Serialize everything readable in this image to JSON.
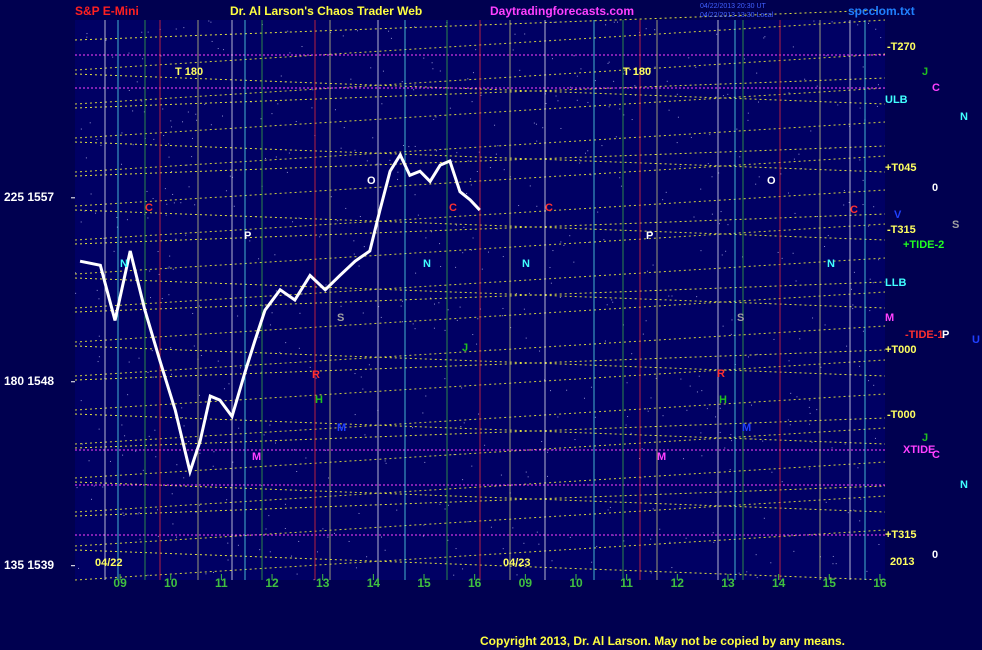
{
  "chart_data": {
    "type": "line",
    "symbol": "S&P E-Mini",
    "title": "Dr. Al Larson's Chaos Trader Web",
    "website": "Daytradingforecasts.com",
    "timestamps": [
      "04/22/2013 20:30 UT",
      "04/22/2013 13:30 Local"
    ],
    "file": "spcclom.txt",
    "copyright": "Copyright 2013, Dr. Al Larson. May not be copied by any means.",
    "color": "#ffffff",
    "x": [
      -0.79,
      -0.39,
      -0.1,
      0.2,
      0.49,
      0.79,
      1.09,
      1.38,
      1.58,
      1.78,
      1.97,
      2.21,
      2.47,
      2.66,
      2.86,
      3.16,
      3.45,
      3.75,
      4.05,
      4.34,
      4.64,
      4.93,
      5.13,
      5.33,
      5.53,
      5.72,
      5.92,
      6.12,
      6.32,
      6.51,
      6.71,
      6.91,
      7.1
    ],
    "values": [
      1553.9,
      1553.7,
      1551.0,
      1554.4,
      1551.5,
      1549.0,
      1546.6,
      1543.6,
      1545.1,
      1547.3,
      1547.1,
      1546.3,
      1548.5,
      1550.0,
      1551.5,
      1552.5,
      1552.0,
      1553.2,
      1552.5,
      1553.2,
      1553.9,
      1554.4,
      1556.4,
      1558.3,
      1559.1,
      1558.1,
      1558.3,
      1557.8,
      1558.6,
      1558.8,
      1557.3,
      1556.9,
      1556.4
    ],
    "xlim": [
      -0.89,
      15.1
    ],
    "xticks": [
      {
        "value": 0,
        "label": "09"
      },
      {
        "value": 1,
        "label": "10"
      },
      {
        "value": 2,
        "label": "11"
      },
      {
        "value": 3,
        "label": "12"
      },
      {
        "value": 4,
        "label": "13"
      },
      {
        "value": 5,
        "label": "14"
      },
      {
        "value": 6,
        "label": "15"
      },
      {
        "value": 7,
        "label": "16"
      },
      {
        "value": 8,
        "label": "09"
      },
      {
        "value": 9,
        "label": "10"
      },
      {
        "value": 10,
        "label": "11"
      },
      {
        "value": 11,
        "label": "12"
      },
      {
        "value": 12,
        "label": "13"
      },
      {
        "value": 13,
        "label": "14"
      },
      {
        "value": 14,
        "label": "15"
      },
      {
        "value": 15,
        "label": "16"
      }
    ],
    "ylim": [
      1538.3,
      1565.7
    ],
    "yticks": [
      {
        "value": 1539,
        "label": "135 1539"
      },
      {
        "value": 1548,
        "label": "180 1548"
      },
      {
        "value": 1557,
        "label": "225 1557"
      }
    ],
    "labels": [
      "-T270",
      "ULB",
      "+T045",
      "-T315",
      "+TIDE-2",
      "LLB",
      "M",
      "-TIDE-1",
      "+T000",
      "-T000",
      "XTIDE",
      "+T315",
      "2013",
      "J",
      "C",
      "N",
      "0",
      "S",
      "P",
      "U",
      "J",
      "C",
      "N",
      "0",
      "T  180",
      "T  180",
      "04/22",
      "04/23",
      "C",
      "P",
      "O",
      "C",
      "C",
      "P",
      "O",
      "C",
      "N",
      "N",
      "N",
      "N",
      "S",
      "S",
      "R",
      "R",
      "H",
      "H",
      "M",
      "M",
      "M",
      "M",
      "J",
      "V"
    ]
  }
}
